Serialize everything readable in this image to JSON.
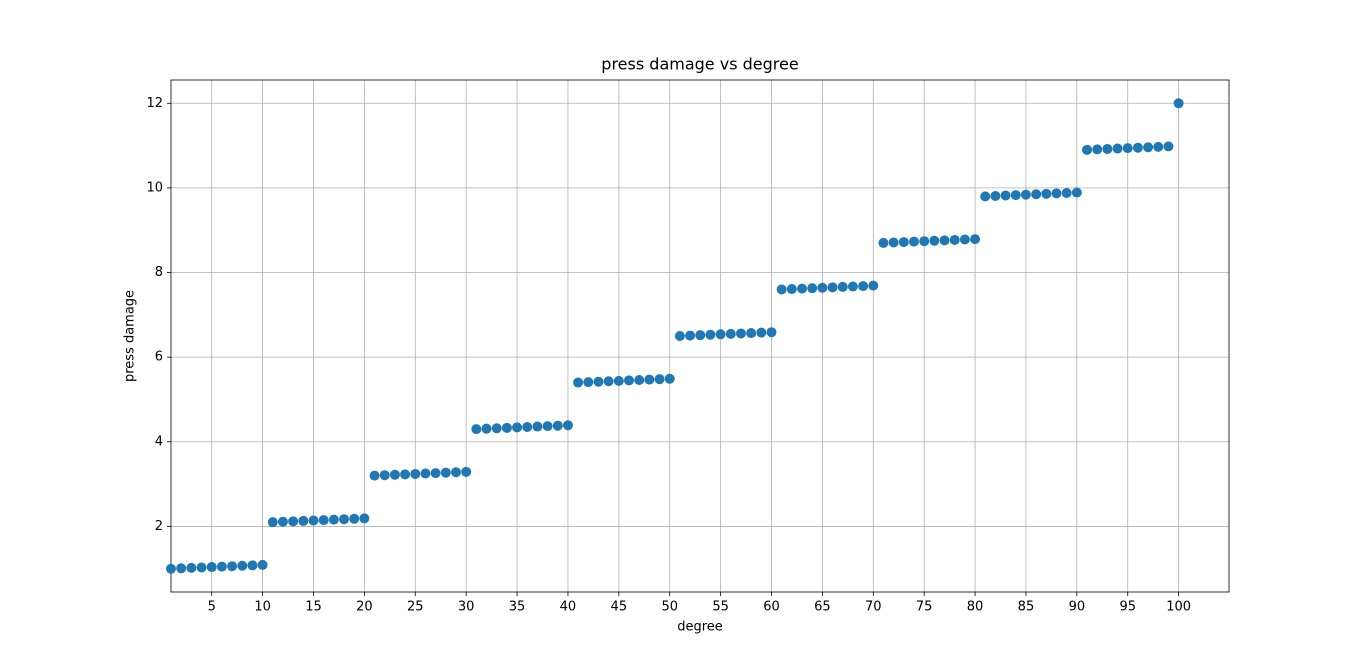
{
  "chart_data": {
    "type": "scatter",
    "title": "press damage vs degree",
    "xlabel": "degree",
    "ylabel": "press damage",
    "x": [
      1,
      2,
      3,
      4,
      5,
      6,
      7,
      8,
      9,
      10,
      11,
      12,
      13,
      14,
      15,
      16,
      17,
      18,
      19,
      20,
      21,
      22,
      23,
      24,
      25,
      26,
      27,
      28,
      29,
      30,
      31,
      32,
      33,
      34,
      35,
      36,
      37,
      38,
      39,
      40,
      41,
      42,
      43,
      44,
      45,
      46,
      47,
      48,
      49,
      50,
      51,
      52,
      53,
      54,
      55,
      56,
      57,
      58,
      59,
      60,
      61,
      62,
      63,
      64,
      65,
      66,
      67,
      68,
      69,
      70,
      71,
      72,
      73,
      74,
      75,
      76,
      77,
      78,
      79,
      80,
      81,
      82,
      83,
      84,
      85,
      86,
      87,
      88,
      89,
      90,
      91,
      92,
      93,
      94,
      95,
      96,
      97,
      98,
      99,
      100
    ],
    "values": [
      1.0,
      1.01,
      1.02,
      1.03,
      1.04,
      1.05,
      1.06,
      1.07,
      1.08,
      1.09,
      2.1,
      2.11,
      2.12,
      2.13,
      2.14,
      2.15,
      2.16,
      2.17,
      2.18,
      2.19,
      3.2,
      3.21,
      3.22,
      3.23,
      3.24,
      3.25,
      3.26,
      3.27,
      3.28,
      3.29,
      4.3,
      4.31,
      4.32,
      4.33,
      4.34,
      4.35,
      4.36,
      4.37,
      4.38,
      4.39,
      5.4,
      5.41,
      5.42,
      5.43,
      5.44,
      5.45,
      5.46,
      5.47,
      5.48,
      5.49,
      6.5,
      6.51,
      6.52,
      6.53,
      6.54,
      6.55,
      6.56,
      6.57,
      6.58,
      6.59,
      7.6,
      7.61,
      7.62,
      7.63,
      7.64,
      7.65,
      7.66,
      7.67,
      7.68,
      7.69,
      8.7,
      8.71,
      8.72,
      8.73,
      8.74,
      8.75,
      8.76,
      8.77,
      8.78,
      8.79,
      9.8,
      9.81,
      9.82,
      9.83,
      9.84,
      9.85,
      9.86,
      9.87,
      9.88,
      9.89,
      10.9,
      10.91,
      10.92,
      10.93,
      10.94,
      10.95,
      10.96,
      10.97,
      10.98,
      12.0
    ],
    "color": "#1f77b4",
    "xlim": [
      1,
      104.95
    ],
    "xticks": [
      5,
      10,
      15,
      20,
      25,
      30,
      35,
      40,
      45,
      50,
      55,
      60,
      65,
      70,
      75,
      80,
      85,
      90,
      95,
      100
    ],
    "ylim": [
      0.45,
      12.55
    ],
    "yticks": [
      2,
      4,
      6,
      8,
      10,
      12
    ],
    "grid": true
  }
}
